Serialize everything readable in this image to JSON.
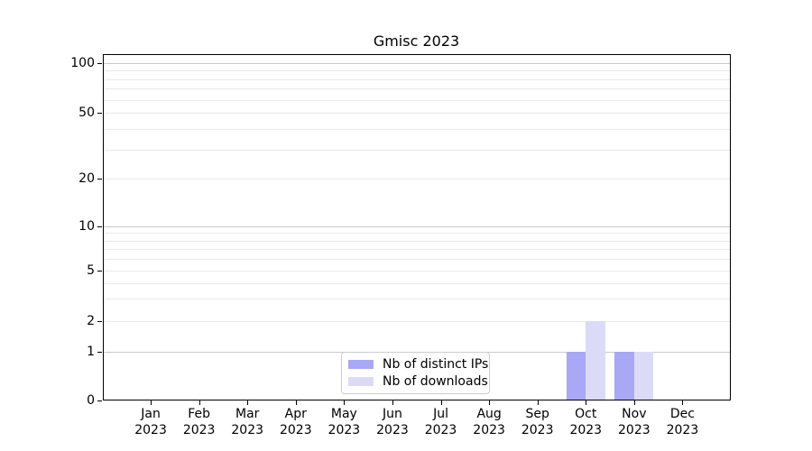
{
  "chart_data": {
    "type": "bar",
    "title": "Gmisc 2023",
    "categories": [
      "Jan",
      "Feb",
      "Mar",
      "Apr",
      "May",
      "Jun",
      "Jul",
      "Aug",
      "Sep",
      "Oct",
      "Nov",
      "Dec"
    ],
    "x_year": "2023",
    "series": [
      {
        "name": "Nb of distinct IPs",
        "color": "#a8a8f5",
        "values": [
          0,
          0,
          0,
          0,
          0,
          0,
          0,
          0,
          0,
          1,
          1,
          0
        ]
      },
      {
        "name": "Nb of downloads",
        "color": "#dbdbf8",
        "values": [
          0,
          0,
          0,
          0,
          0,
          0,
          0,
          0,
          0,
          2,
          1,
          0
        ]
      }
    ],
    "y_ticks": [
      0,
      1,
      2,
      5,
      10,
      20,
      50,
      100
    ],
    "y_major_gridlines": [
      1,
      10,
      100
    ],
    "y_minor_gridlines": [
      2,
      3,
      4,
      5,
      6,
      7,
      8,
      9,
      20,
      30,
      40,
      50,
      60,
      70,
      80,
      90
    ],
    "y_scale": "log-like",
    "ylim": [
      0,
      115
    ],
    "grid": "horizontal major+minor",
    "legend_position": "lower center",
    "colors": {
      "major_grid": "#c9c9c9",
      "minor_grid": "#e9e9e9",
      "axis": "#000000",
      "background": "#ffffff"
    }
  }
}
